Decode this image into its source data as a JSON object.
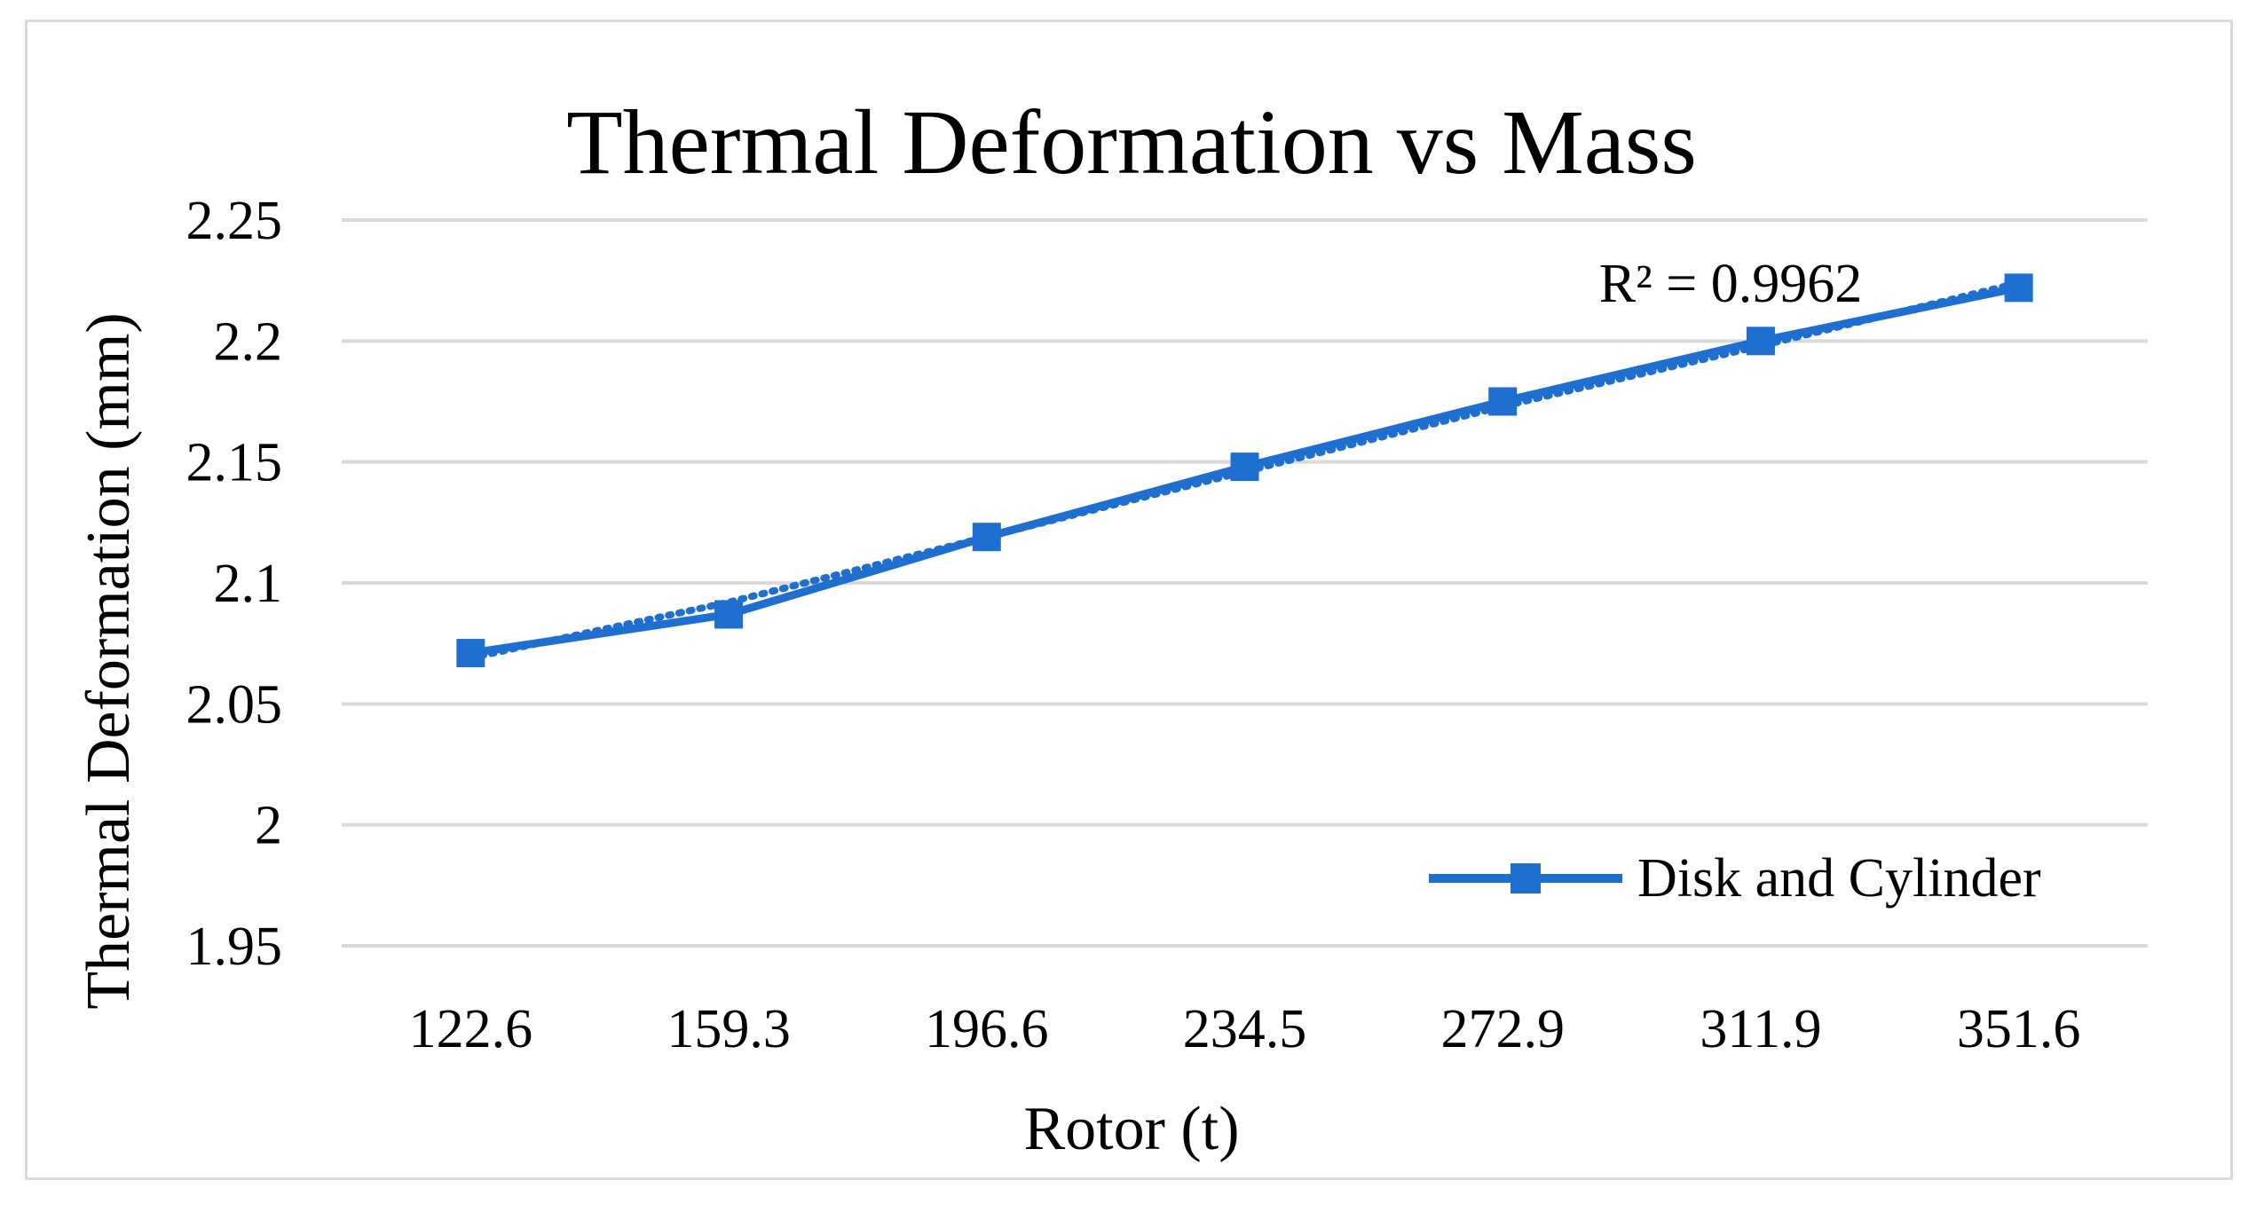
{
  "chart_data": {
    "type": "line",
    "title": "Thermal Deformation vs Mass",
    "xlabel": "Rotor  (t)",
    "ylabel": "Thermal Deformation (mm)",
    "categories": [
      "122.6",
      "159.3",
      "196.6",
      "234.5",
      "272.9",
      "311.9",
      "351.6"
    ],
    "ylim": [
      1.95,
      2.25
    ],
    "yticks": [
      "2.25",
      "2.2",
      "2.15",
      "2.1",
      "2.05",
      "2",
      "1.95"
    ],
    "ytick_values": [
      2.25,
      2.2,
      2.15,
      2.1,
      2.05,
      2.0,
      1.95
    ],
    "grid": true,
    "legend_position": "bottom-right",
    "series": [
      {
        "name": "Disk and Cylinder",
        "values": [
          2.071,
          2.087,
          2.119,
          2.148,
          2.175,
          2.2,
          2.222
        ],
        "color": "#1f6fd1",
        "marker": "square"
      }
    ],
    "trendline": {
      "type": "polynomial",
      "style": "dotted",
      "color": "#1f6fd1",
      "values": [
        2.069,
        2.092,
        2.119,
        2.146,
        2.173,
        2.198,
        2.224
      ],
      "annotation": "R² = 0.9962"
    }
  },
  "colors": {
    "series": "#1f6fd1",
    "grid": "#d9d9d9",
    "frame": "#d9d9d9"
  }
}
